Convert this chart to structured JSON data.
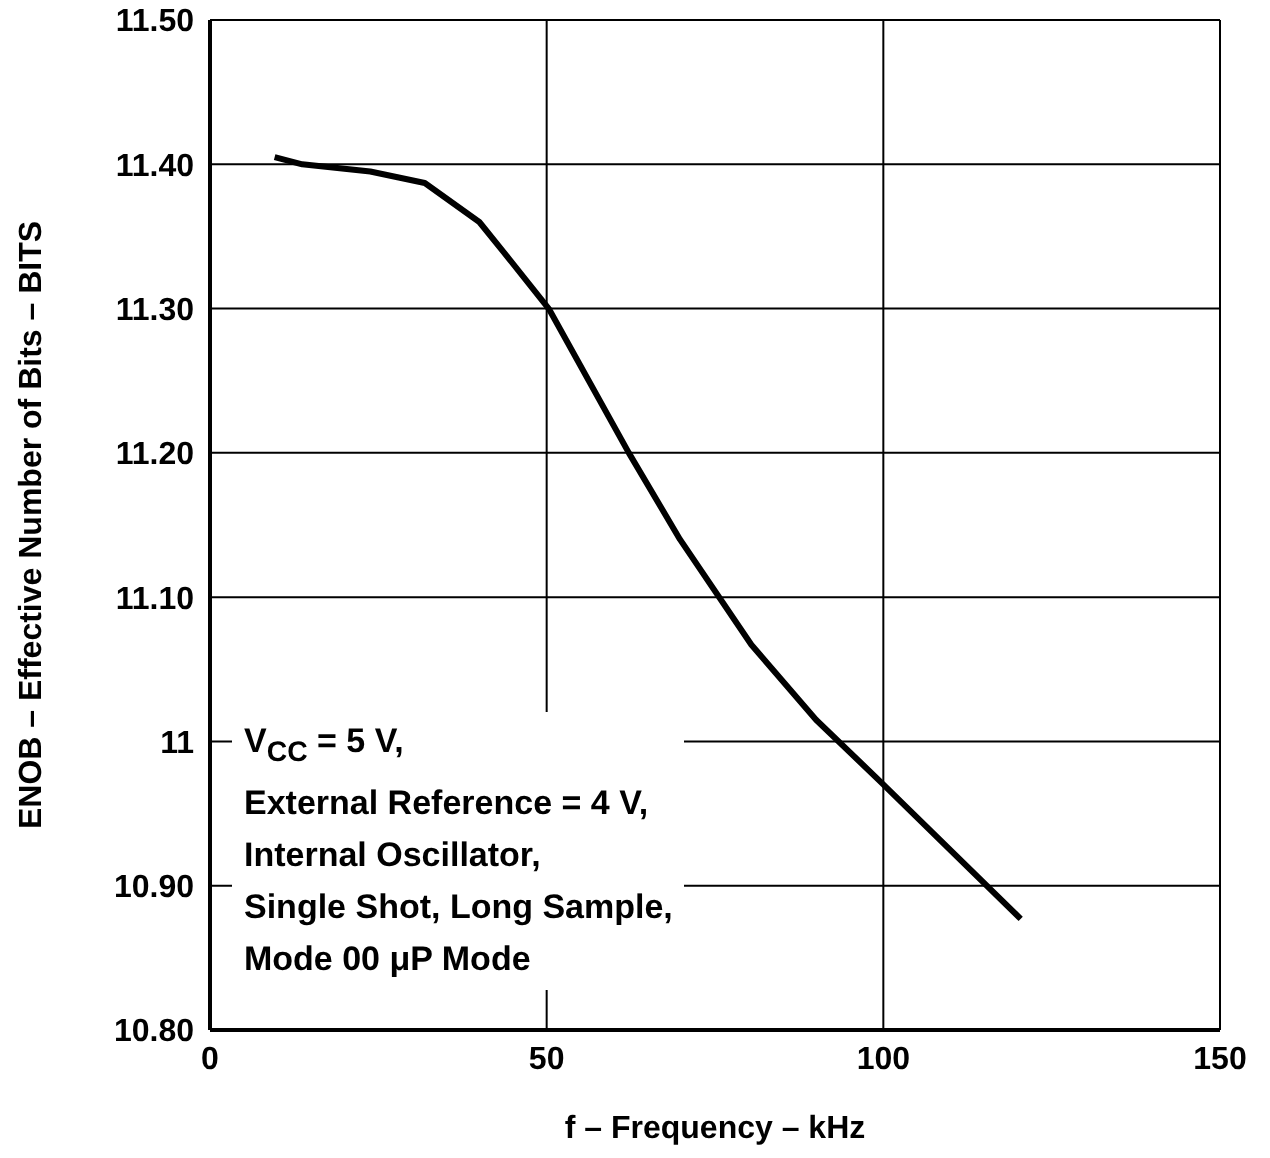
{
  "chart_data": {
    "type": "line",
    "xlabel": "f – Frequency – kHz",
    "ylabel": "ENOB – Effective Number of Bits – BITS",
    "x": [
      9.6,
      13.7,
      23.8,
      31.9,
      40,
      44.5,
      50.3,
      62.2,
      69.8,
      80.4,
      90,
      99.6,
      120.4
    ],
    "series": [
      {
        "color": "#000000",
        "values": [
          11.405,
          11.4,
          11.395,
          11.387,
          11.36,
          11.334,
          11.3,
          11.2,
          11.14,
          11.067,
          11.015,
          10.972,
          10.877
        ]
      }
    ],
    "xlim": [
      0,
      150
    ],
    "xticks": [
      0,
      50,
      100,
      150
    ],
    "ylim": [
      10.8,
      11.5
    ],
    "yticks": [
      {
        "value": 10.8,
        "label": "10.80"
      },
      {
        "value": 10.9,
        "label": "10.90"
      },
      11,
      {
        "value": 11.1,
        "label": "11.10"
      },
      {
        "value": 11.2,
        "label": "11.20"
      },
      {
        "value": 11.3,
        "label": "11.30"
      },
      {
        "value": 11.4,
        "label": "11.40"
      },
      {
        "value": 11.5,
        "label": "11.50"
      }
    ],
    "grid": true,
    "marker": "none",
    "line_style": "solid",
    "annotations": [
      "V$_{CC}$ = 5 V,\nExternal Reference = 4 V,\nInternal Oscillator,\nSingle Shot, Long Sample,\nMode 00 μP Mode"
    ]
  }
}
